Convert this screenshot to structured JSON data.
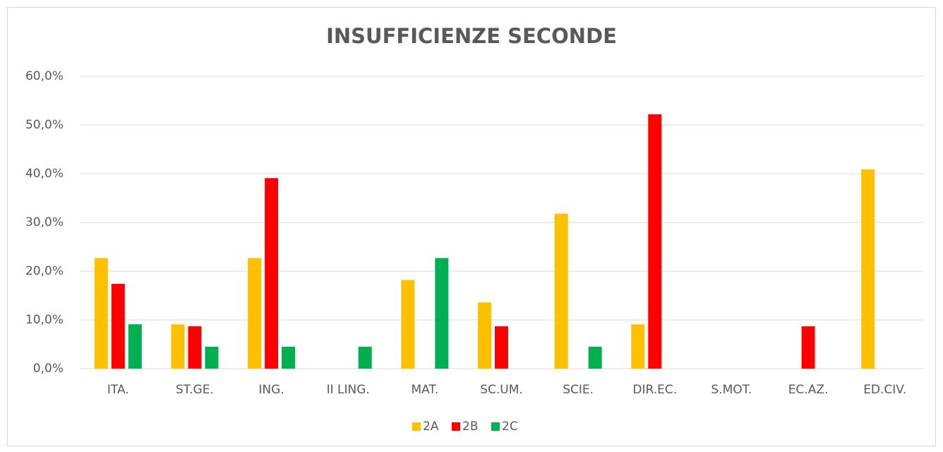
{
  "chart_data": {
    "type": "bar",
    "title": "INSUFFICIENZE SECONDE",
    "categories": [
      "ITA.",
      "ST.GE.",
      "ING.",
      "II LING.",
      "MAT.",
      "SC.UM.",
      "SCIE.",
      "DIR.EC.",
      "S.MOT.",
      "EC.AZ.",
      "ED.CIV."
    ],
    "series": [
      {
        "name": "2A",
        "color": "#ffc000",
        "values": [
          22.7,
          9.1,
          22.7,
          0,
          18.2,
          13.6,
          31.8,
          9.1,
          0,
          0,
          40.9
        ]
      },
      {
        "name": "2B",
        "color": "#ff0000",
        "values": [
          17.4,
          8.7,
          39.1,
          0,
          0,
          8.7,
          0,
          52.2,
          0,
          8.7,
          0
        ]
      },
      {
        "name": "2C",
        "color": "#00b050",
        "values": [
          9.1,
          4.5,
          4.5,
          4.5,
          22.7,
          0,
          4.5,
          0,
          0,
          0,
          0
        ]
      }
    ],
    "ylim": [
      0,
      60
    ],
    "yticks": [
      {
        "value": 0,
        "label": "0,0%"
      },
      {
        "value": 10,
        "label": "10,0%"
      },
      {
        "value": 20,
        "label": "20,0%"
      },
      {
        "value": 30,
        "label": "30,0%"
      },
      {
        "value": 40,
        "label": "40,0%"
      },
      {
        "value": 50,
        "label": "50,0%"
      },
      {
        "value": 60,
        "label": "60,0%"
      }
    ],
    "grid": true,
    "legend": "bottom"
  }
}
